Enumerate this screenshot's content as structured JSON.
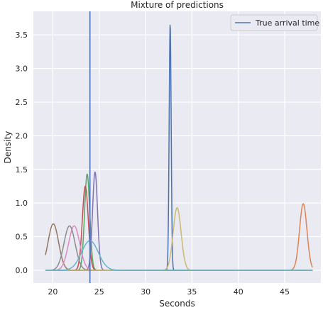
{
  "chart_data": {
    "type": "line",
    "title": "Mixture of predictions",
    "xlabel": "Seconds",
    "ylabel": "Density",
    "xlim": [
      17.9,
      48.9
    ],
    "ylim": [
      -0.19,
      3.85
    ],
    "xticks": [
      20,
      25,
      30,
      35,
      40,
      45
    ],
    "yticks": [
      0.0,
      0.5,
      1.0,
      1.5,
      2.0,
      2.5,
      3.0,
      3.5
    ],
    "grid": true,
    "legend": {
      "placement": "top-right",
      "entries": [
        "True arrival time"
      ]
    },
    "vline": {
      "name": "True arrival time",
      "x": 24.0,
      "color": "#4c72b0"
    },
    "series": [
      {
        "color": "#4c72b0",
        "mean": 32.65,
        "sd": 0.109,
        "peak": 3.66
      },
      {
        "color": "#dd8452",
        "mean": 47.0,
        "sd": 0.4,
        "peak": 0.99
      },
      {
        "color": "#55a868",
        "mean": 23.7,
        "sd": 0.28,
        "peak": 1.43
      },
      {
        "color": "#c44e52",
        "mean": 23.5,
        "sd": 0.32,
        "peak": 1.25
      },
      {
        "color": "#8172b3",
        "mean": 24.55,
        "sd": 0.27,
        "peak": 1.46
      },
      {
        "color": "#937860",
        "mean": 20.05,
        "sd": 0.57,
        "peak": 0.69
      },
      {
        "color": "#da8bc3",
        "mean": 22.3,
        "sd": 0.6,
        "peak": 0.66
      },
      {
        "color": "#8c8c8c",
        "mean": 21.8,
        "sd": 0.6,
        "peak": 0.66
      },
      {
        "color": "#ccb974",
        "mean": 33.4,
        "sd": 0.43,
        "peak": 0.93
      },
      {
        "color": "#64b5cd",
        "mean": 24.0,
        "sd": 0.9,
        "peak": 0.44
      }
    ]
  }
}
